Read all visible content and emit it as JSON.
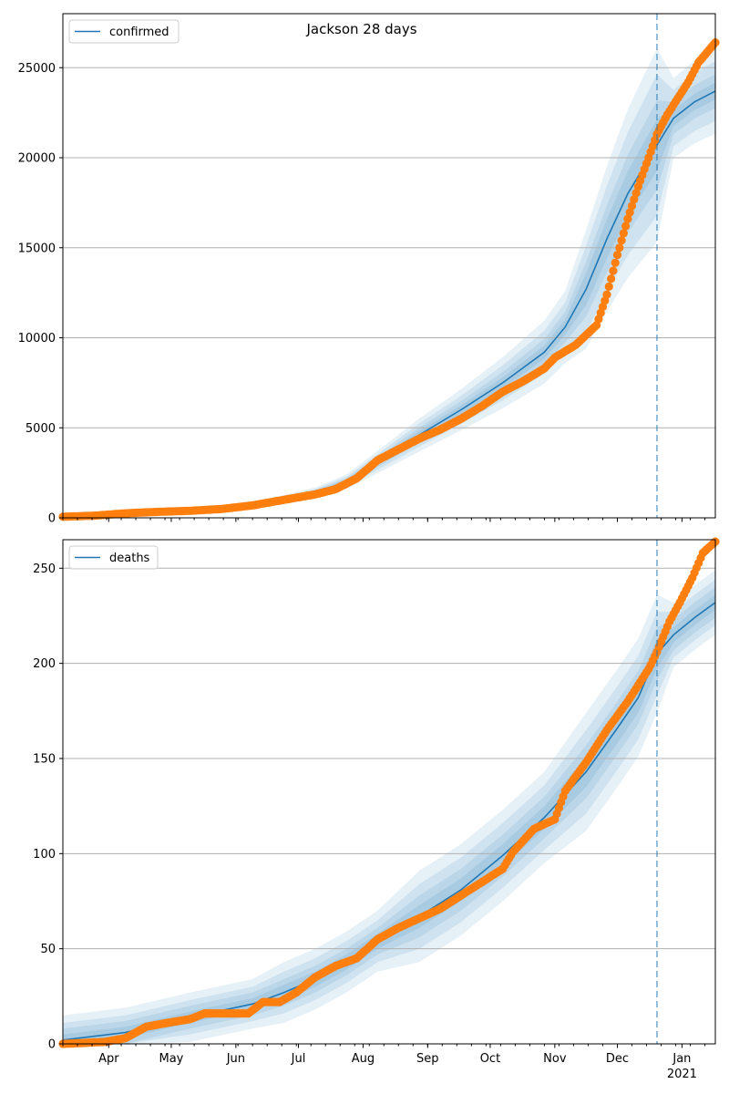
{
  "figure_title": "Jackson 28 days",
  "colors": {
    "model_line": "#1f77b4",
    "observed": "#ff7f0e",
    "band": "#1f77b4",
    "grid": "#b0b0b0",
    "forecast_marker": "#1f77b4"
  },
  "x_axis": {
    "months": [
      {
        "label": "Apr",
        "day": 22
      },
      {
        "label": "May",
        "day": 52
      },
      {
        "label": "Jun",
        "day": 83
      },
      {
        "label": "Jul",
        "day": 113
      },
      {
        "label": "Aug",
        "day": 144
      },
      {
        "label": "Sep",
        "day": 175
      },
      {
        "label": "Oct",
        "day": 205
      },
      {
        "label": "Nov",
        "day": 236
      },
      {
        "label": "Dec",
        "day": 266
      },
      {
        "label": "Jan",
        "day": 297
      }
    ],
    "year_label": "2021",
    "start": "2020-03-10",
    "end": "2021-01-17",
    "forecast_start": "2020-12-20"
  },
  "chart_data": [
    {
      "type": "line",
      "legend": "confirmed",
      "legend_position": "upper left",
      "ylim": [
        0,
        28000
      ],
      "yticks": [
        0,
        5000,
        10000,
        15000,
        20000,
        25000
      ],
      "grid": "horizontal",
      "model_points": [
        [
          "2020-03-10",
          40
        ],
        [
          "2020-04-09",
          150
        ],
        [
          "2020-05-10",
          350
        ],
        [
          "2020-06-09",
          700
        ],
        [
          "2020-07-09",
          1400
        ],
        [
          "2020-07-24",
          2000
        ],
        [
          "2020-08-08",
          3100
        ],
        [
          "2020-08-28",
          4600
        ],
        [
          "2020-09-17",
          6000
        ],
        [
          "2020-10-07",
          7500
        ],
        [
          "2020-10-27",
          9200
        ],
        [
          "2020-11-06",
          10600
        ],
        [
          "2020-11-16",
          12700
        ],
        [
          "2020-11-26",
          15500
        ],
        [
          "2020-12-06",
          18000
        ],
        [
          "2020-12-20",
          20700
        ],
        [
          "2020-12-28",
          22200
        ],
        [
          "2021-01-07",
          23100
        ],
        [
          "2021-01-17",
          23700
        ]
      ],
      "band_widths": [
        [
          0.06,
          0.1,
          0.16,
          0.22
        ],
        [
          0.05,
          0.09,
          0.14,
          0.2
        ],
        [
          0.04,
          0.08,
          0.13,
          0.19
        ],
        [
          0.07,
          0.12,
          0.19,
          0.26
        ],
        [
          0.02,
          0.04,
          0.07,
          0.1
        ]
      ],
      "observed_points": [
        [
          "2020-03-10",
          60
        ],
        [
          "2020-03-25",
          120
        ],
        [
          "2020-04-09",
          250
        ],
        [
          "2020-04-24",
          330
        ],
        [
          "2020-05-10",
          390
        ],
        [
          "2020-05-25",
          490
        ],
        [
          "2020-06-09",
          690
        ],
        [
          "2020-06-24",
          1000
        ],
        [
          "2020-07-09",
          1300
        ],
        [
          "2020-07-19",
          1600
        ],
        [
          "2020-07-29",
          2200
        ],
        [
          "2020-08-03",
          2700
        ],
        [
          "2020-08-08",
          3200
        ],
        [
          "2020-08-18",
          3800
        ],
        [
          "2020-08-28",
          4400
        ],
        [
          "2020-09-07",
          4900
        ],
        [
          "2020-09-17",
          5500
        ],
        [
          "2020-09-27",
          6200
        ],
        [
          "2020-10-07",
          7000
        ],
        [
          "2020-10-17",
          7600
        ],
        [
          "2020-10-27",
          8300
        ],
        [
          "2020-11-01",
          8900
        ],
        [
          "2020-11-11",
          9600
        ],
        [
          "2020-11-21",
          10700
        ],
        [
          "2020-11-26",
          12400
        ],
        [
          "2020-12-01",
          14600
        ],
        [
          "2020-12-06",
          16600
        ],
        [
          "2020-12-11",
          18400
        ],
        [
          "2020-12-16",
          20000
        ],
        [
          "2020-12-20",
          21300
        ],
        [
          "2020-12-25",
          22400
        ],
        [
          "2020-12-30",
          23300
        ],
        [
          "2021-01-04",
          24200
        ],
        [
          "2021-01-09",
          25300
        ],
        [
          "2021-01-17",
          26400
        ]
      ]
    },
    {
      "type": "line",
      "legend": "deaths",
      "legend_position": "upper left",
      "ylim": [
        0,
        265
      ],
      "yticks": [
        0,
        50,
        100,
        150,
        200,
        250
      ],
      "grid": "horizontal",
      "model_points": [
        [
          "2020-03-10",
          2
        ],
        [
          "2020-04-09",
          6
        ],
        [
          "2020-05-10",
          14
        ],
        [
          "2020-06-09",
          21
        ],
        [
          "2020-06-24",
          27
        ],
        [
          "2020-07-09",
          34
        ],
        [
          "2020-07-24",
          43
        ],
        [
          "2020-08-08",
          54
        ],
        [
          "2020-08-28",
          67
        ],
        [
          "2020-09-17",
          81
        ],
        [
          "2020-10-07",
          99
        ],
        [
          "2020-10-27",
          119
        ],
        [
          "2020-11-16",
          143
        ],
        [
          "2020-12-01",
          166
        ],
        [
          "2020-12-11",
          182
        ],
        [
          "2020-12-20",
          205
        ],
        [
          "2020-12-28",
          215
        ],
        [
          "2021-01-07",
          224
        ],
        [
          "2021-01-17",
          232
        ]
      ],
      "band_widths": [
        [
          3,
          6,
          9,
          13
        ],
        [
          4,
          7,
          11,
          16
        ],
        [
          6,
          11,
          17,
          24
        ],
        [
          8,
          14,
          22,
          31
        ],
        [
          4,
          8,
          12,
          17
        ]
      ],
      "observed_points": [
        [
          "2020-03-10",
          0
        ],
        [
          "2020-03-30",
          1
        ],
        [
          "2020-04-09",
          3
        ],
        [
          "2020-04-19",
          9
        ],
        [
          "2020-04-29",
          11
        ],
        [
          "2020-05-10",
          13
        ],
        [
          "2020-05-17",
          16
        ],
        [
          "2020-05-27",
          16
        ],
        [
          "2020-06-07",
          16
        ],
        [
          "2020-06-14",
          22
        ],
        [
          "2020-06-22",
          22
        ],
        [
          "2020-06-30",
          27
        ],
        [
          "2020-07-09",
          35
        ],
        [
          "2020-07-19",
          41
        ],
        [
          "2020-07-29",
          45
        ],
        [
          "2020-08-08",
          55
        ],
        [
          "2020-08-18",
          61
        ],
        [
          "2020-08-28",
          66
        ],
        [
          "2020-09-07",
          71
        ],
        [
          "2020-09-17",
          78
        ],
        [
          "2020-09-27",
          85
        ],
        [
          "2020-10-07",
          92
        ],
        [
          "2020-10-12",
          101
        ],
        [
          "2020-10-22",
          113
        ],
        [
          "2020-11-01",
          118
        ],
        [
          "2020-11-06",
          133
        ],
        [
          "2020-11-16",
          148
        ],
        [
          "2020-11-26",
          165
        ],
        [
          "2020-12-06",
          180
        ],
        [
          "2020-12-16",
          197
        ],
        [
          "2020-12-20",
          206
        ],
        [
          "2020-12-26",
          222
        ],
        [
          "2020-12-31",
          232
        ],
        [
          "2021-01-06",
          245
        ],
        [
          "2021-01-11",
          258
        ],
        [
          "2021-01-17",
          264
        ]
      ]
    }
  ]
}
